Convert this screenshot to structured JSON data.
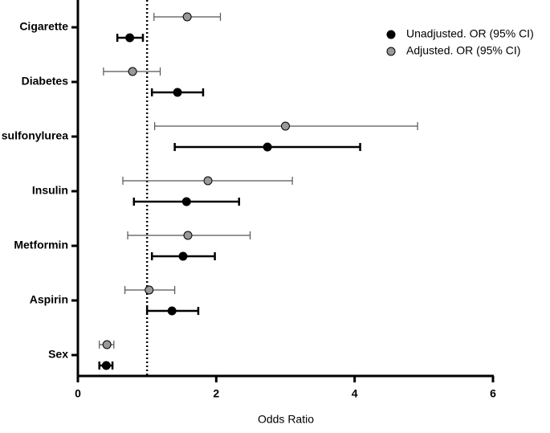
{
  "chart_data": {
    "type": "forest",
    "xlabel": "Odds Ratio",
    "categories": [
      "Cigarette",
      "Diabetes",
      "sulfonylurea",
      "Insulin",
      "Metformin",
      "Aspirin",
      "Sex"
    ],
    "series": [
      {
        "name": "Unadjusted. OR (95% CI)",
        "color": "#000000",
        "values": [
          0.75,
          1.44,
          2.74,
          1.57,
          1.52,
          1.36,
          0.41
        ],
        "lower": [
          0.57,
          1.07,
          1.4,
          0.81,
          1.07,
          1.0,
          0.31
        ],
        "upper": [
          0.94,
          1.81,
          4.08,
          2.33,
          1.98,
          1.74,
          0.5
        ]
      },
      {
        "name": "Adjusted. OR (95% CI)",
        "color": "#999999",
        "values": [
          1.58,
          0.79,
          3.0,
          1.88,
          1.59,
          1.03,
          0.42
        ],
        "lower": [
          1.1,
          0.37,
          1.11,
          0.65,
          0.72,
          0.68,
          0.31
        ],
        "upper": [
          2.06,
          1.19,
          4.91,
          3.1,
          2.49,
          1.4,
          0.52
        ]
      }
    ],
    "xlim": [
      0,
      6
    ],
    "xticks": [
      0,
      2,
      4,
      6
    ],
    "reference_line": 1,
    "legend": "top-right"
  }
}
